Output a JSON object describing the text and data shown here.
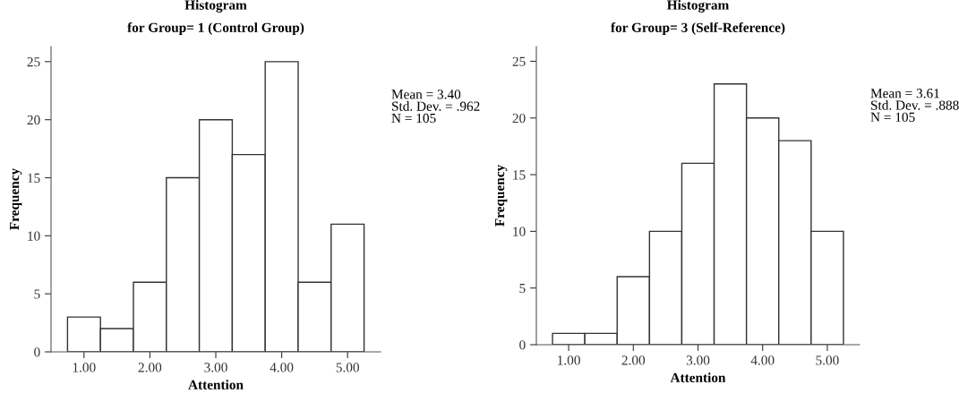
{
  "chart_data": [
    {
      "type": "histogram",
      "title": "Histogram",
      "subtitle": "for Group= 1 (Control Group)",
      "xlabel": "Attention",
      "ylabel": "Frequency",
      "bins": [
        0.75,
        1.25,
        1.75,
        2.25,
        2.75,
        3.25,
        3.75,
        4.25,
        4.75,
        5.25
      ],
      "values": [
        3,
        2,
        6,
        15,
        20,
        17,
        25,
        6,
        11
      ],
      "color": "#ffffff",
      "xlim": [
        0.5,
        5.5
      ],
      "xticks": [
        {
          "value": 1,
          "label": "1.00"
        },
        {
          "value": 2,
          "label": "2.00"
        },
        {
          "value": 3,
          "label": "3.00"
        },
        {
          "value": 4,
          "label": "4.00"
        },
        {
          "value": 5,
          "label": "5.00"
        }
      ],
      "ylim": [
        0,
        26.3
      ],
      "yticks": [
        0,
        5,
        10,
        15,
        20,
        25
      ],
      "grid": false,
      "annotations": [
        "Mean = 3.40\nStd. Dev. = .962\nN = 105"
      ]
    },
    {
      "type": "histogram",
      "title": "Histogram",
      "subtitle": "for Group= 3 (Self-Reference)",
      "xlabel": "Attention",
      "ylabel": "Frequency",
      "bins": [
        0.75,
        1.25,
        1.75,
        2.25,
        2.75,
        3.25,
        3.75,
        4.25,
        4.75,
        5.25
      ],
      "values": [
        1,
        1,
        6,
        10,
        16,
        23,
        20,
        18,
        10
      ],
      "color": "#ffffff",
      "xlim": [
        0.5,
        5.5
      ],
      "xticks": [
        {
          "value": 1,
          "label": "1.00"
        },
        {
          "value": 2,
          "label": "2.00"
        },
        {
          "value": 3,
          "label": "3.00"
        },
        {
          "value": 4,
          "label": "4.00"
        },
        {
          "value": 5,
          "label": "5.00"
        }
      ],
      "ylim": [
        0,
        26.3
      ],
      "yticks": [
        0,
        5,
        10,
        15,
        20,
        25
      ],
      "grid": false,
      "annotations": [
        "Mean = 3.61\nStd. Dev. = .888\nN = 105"
      ]
    }
  ]
}
